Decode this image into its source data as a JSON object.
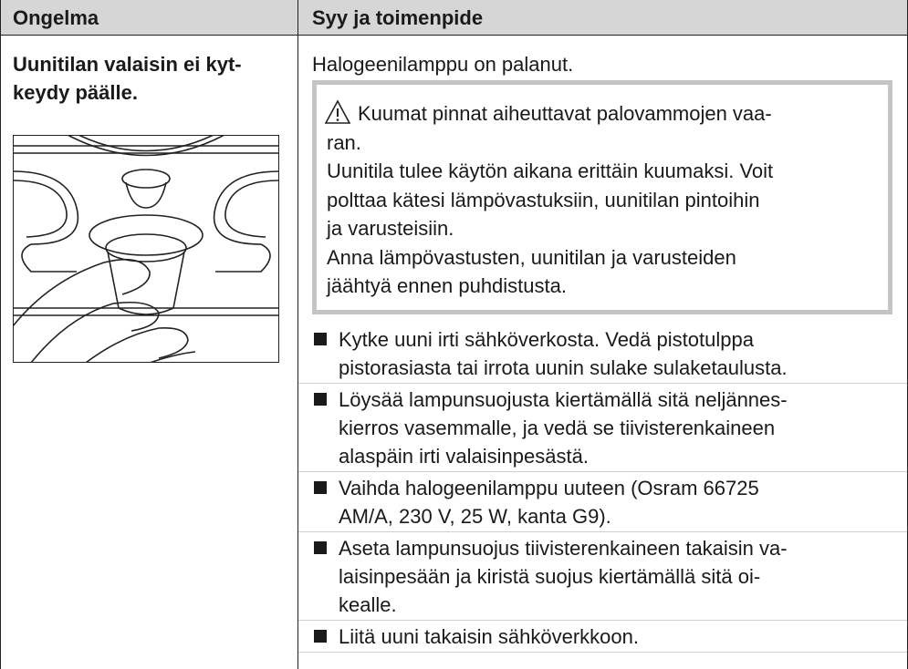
{
  "table": {
    "headers": [
      "Ongelma",
      "Syy ja toimenpide"
    ],
    "rows": [
      {
        "problem": [
          "Uunitilan valaisin ei kyt-",
          "keydy päälle."
        ],
        "cause": "Halogeenilamppu on palanut.",
        "warning": {
          "title": [
            "Kuumat pinnat aiheuttavat palovammojen vaa-",
            "ran."
          ],
          "body": [
            "Uunitila tulee käytön aikana erittäin kuumaksi. Voit",
            "polttaa kätesi lämpövastuksiin, uunitilan pintoihin",
            "ja varusteisiin.",
            "Anna lämpövastusten, uunitilan ja varusteiden",
            "jäähtyä ennen puhdistusta."
          ]
        },
        "steps": [
          [
            "Kytke uuni irti sähköverkosta. Vedä pistotulppa",
            "pistorasiasta tai irrota uunin sulake sulaketaulusta."
          ],
          [
            "Löysää lampunsuojusta kiertämällä sitä neljännes-",
            "kierros vasemmalle, ja vedä se tiivisterenkaineen",
            "alaspäin irti valaisinpesästä."
          ],
          [
            "Vaihda halogeenilamppu uuteen (Osram 66725",
            "AM/A, 230 V, 25 W, kanta G9)."
          ],
          [
            "Aseta lampunsuojus tiivisterenkaineen takaisin va-",
            "laisinpesään ja kiristä suojus kiertämällä sitä oi-",
            "kealle."
          ],
          [
            "Liitä uuni takaisin sähköverkkoon."
          ]
        ]
      }
    ]
  }
}
